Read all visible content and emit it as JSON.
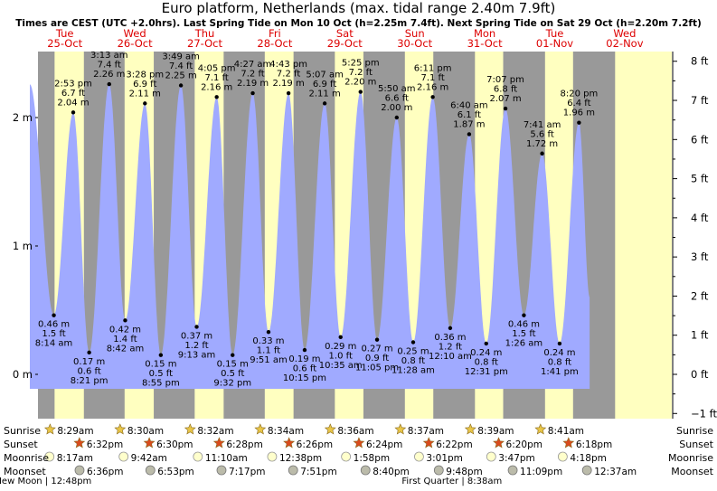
{
  "title": "Euro platform, Netherlands (max. tidal range 2.40m 7.9ft)",
  "subtitle": "Times are CEST (UTC +2.0hrs). Last Spring Tide on Mon 10 Oct (h=2.25m 7.4ft). Next Spring Tide on Sat 29 Oct (h=2.20m 7.2ft)",
  "colors": {
    "night": "#999999",
    "day": "#ffffc0",
    "tide": "#a0aaff",
    "date_text": "#dd0000",
    "sun_star": "#e8c547",
    "sunset_star": "#d94a1e"
  },
  "row_labels": {
    "sunrise": "Sunrise",
    "sunset": "Sunset",
    "moonrise": "Moonrise",
    "moonset": "Moonset"
  },
  "days": [
    {
      "dow": "Tue",
      "date": "25-Oct"
    },
    {
      "dow": "Wed",
      "date": "26-Oct"
    },
    {
      "dow": "Thu",
      "date": "27-Oct"
    },
    {
      "dow": "Fri",
      "date": "28-Oct"
    },
    {
      "dow": "Sat",
      "date": "29-Oct"
    },
    {
      "dow": "Sun",
      "date": "30-Oct"
    },
    {
      "dow": "Mon",
      "date": "31-Oct"
    },
    {
      "dow": "Tue",
      "date": "01-Nov"
    },
    {
      "dow": "Wed",
      "date": "02-Nov"
    }
  ],
  "sun": [
    {
      "sunrise": "8:29am",
      "sunset": "6:32pm"
    },
    {
      "sunrise": "8:30am",
      "sunset": "6:30pm"
    },
    {
      "sunrise": "8:32am",
      "sunset": "6:28pm"
    },
    {
      "sunrise": "8:34am",
      "sunset": "6:26pm"
    },
    {
      "sunrise": "8:36am",
      "sunset": "6:24pm"
    },
    {
      "sunrise": "8:37am",
      "sunset": "6:22pm"
    },
    {
      "sunrise": "8:39am",
      "sunset": "6:20pm"
    },
    {
      "sunrise": "8:41am",
      "sunset": "6:18pm"
    }
  ],
  "moon": [
    {
      "moonrise": "8:17am",
      "moonset": "6:36pm"
    },
    {
      "moonrise": "9:42am",
      "moonset": "6:53pm"
    },
    {
      "moonrise": "11:10am",
      "moonset": "7:17pm"
    },
    {
      "moonrise": "12:38pm",
      "moonset": "7:51pm"
    },
    {
      "moonrise": "1:58pm",
      "moonset": "8:40pm"
    },
    {
      "moonrise": "3:01pm",
      "moonset": "9:48pm"
    },
    {
      "moonrise": "3:47pm",
      "moonset": "11:09pm"
    },
    {
      "moonrise": "4:18pm",
      "moonset": "12:37am"
    }
  ],
  "moon_phases": [
    {
      "label": "New Moon",
      "time": "12:48pm"
    },
    {
      "label": "First Quarter",
      "time": "8:38am"
    }
  ],
  "chart_data": {
    "type": "area",
    "title": "Euro platform, Netherlands (max. tidal range 2.40m 7.9ft)",
    "x_start": "2022-10-25 00:00",
    "x_end": "2022-11-02 00:00",
    "y_left_unit": "m",
    "y_left_ticks": [
      "0 m",
      "1 m",
      "2 m"
    ],
    "y_right_unit": "ft",
    "y_right_ticks": [
      "−1 ft",
      "0 ft",
      "1 ft",
      "2 ft",
      "3 ft",
      "4 ft",
      "5 ft",
      "6 ft",
      "7 ft",
      "8 ft"
    ],
    "ylim_m": [
      -0.4,
      2.6
    ],
    "grid": false,
    "tides": [
      {
        "day": 0,
        "time": "0:00",
        "m": 2.26,
        "show": false
      },
      {
        "day": 0,
        "time": "8:14 am",
        "m": 0.46,
        "ft": "1.5 ft",
        "type": "low"
      },
      {
        "day": 0,
        "time": "2:53 pm",
        "m": 2.04,
        "ft": "6.7 ft",
        "type": "high"
      },
      {
        "day": 0,
        "time": "8:21 pm",
        "m": 0.17,
        "ft": "0.6 ft",
        "type": "low"
      },
      {
        "day": 1,
        "time": "3:13 am",
        "m": 2.26,
        "ft": "7.4 ft",
        "type": "high"
      },
      {
        "day": 1,
        "time": "8:42 am",
        "m": 0.42,
        "ft": "1.4 ft",
        "type": "low"
      },
      {
        "day": 1,
        "time": "3:28 pm",
        "m": 2.11,
        "ft": "6.9 ft",
        "type": "high"
      },
      {
        "day": 1,
        "time": "8:55 pm",
        "m": 0.15,
        "ft": "0.5 ft",
        "type": "low"
      },
      {
        "day": 2,
        "time": "3:49 am",
        "m": 2.25,
        "ft": "7.4 ft",
        "type": "high"
      },
      {
        "day": 2,
        "time": "9:13 am",
        "m": 0.37,
        "ft": "1.2 ft",
        "type": "low"
      },
      {
        "day": 2,
        "time": "4:05 pm",
        "m": 2.16,
        "ft": "7.1 ft",
        "type": "high"
      },
      {
        "day": 2,
        "time": "9:32 pm",
        "m": 0.15,
        "ft": "0.5 ft",
        "type": "low"
      },
      {
        "day": 3,
        "time": "4:27 am",
        "m": 2.19,
        "ft": "7.2 ft",
        "type": "high"
      },
      {
        "day": 3,
        "time": "9:51 am",
        "m": 0.33,
        "ft": "1.1 ft",
        "type": "low"
      },
      {
        "day": 3,
        "time": "4:43 pm",
        "m": 2.19,
        "ft": "7.2 ft",
        "type": "high"
      },
      {
        "day": 3,
        "time": "10:15 pm",
        "m": 0.19,
        "ft": "0.6 ft",
        "type": "low"
      },
      {
        "day": 4,
        "time": "5:07 am",
        "m": 2.11,
        "ft": "6.9 ft",
        "type": "high"
      },
      {
        "day": 4,
        "time": "10:35 am",
        "m": 0.29,
        "ft": "1.0 ft",
        "type": "low"
      },
      {
        "day": 4,
        "time": "5:25 pm",
        "m": 2.2,
        "ft": "7.2 ft",
        "type": "high"
      },
      {
        "day": 4,
        "time": "11:05 pm",
        "m": 0.27,
        "ft": "0.9 ft",
        "type": "low"
      },
      {
        "day": 5,
        "time": "5:50 am",
        "m": 2.0,
        "ft": "6.6 ft",
        "type": "high"
      },
      {
        "day": 5,
        "time": "11:28 am",
        "m": 0.25,
        "ft": "0.8 ft",
        "type": "low"
      },
      {
        "day": 5,
        "time": "6:11 pm",
        "m": 2.16,
        "ft": "7.1 ft",
        "type": "high"
      },
      {
        "day": 6,
        "time": "12:10 am",
        "m": 0.36,
        "ft": "1.2 ft",
        "type": "low"
      },
      {
        "day": 6,
        "time": "6:40 am",
        "m": 1.87,
        "ft": "6.1 ft",
        "type": "high"
      },
      {
        "day": 6,
        "time": "12:31 pm",
        "m": 0.24,
        "ft": "0.8 ft",
        "type": "low"
      },
      {
        "day": 6,
        "time": "7:07 pm",
        "m": 2.07,
        "ft": "6.8 ft",
        "type": "high"
      },
      {
        "day": 7,
        "time": "1:26 am",
        "m": 0.46,
        "ft": "1.5 ft",
        "type": "low"
      },
      {
        "day": 7,
        "time": "7:41 am",
        "m": 1.72,
        "ft": "5.6 ft",
        "type": "high"
      },
      {
        "day": 7,
        "time": "1:41 pm",
        "m": 0.24,
        "ft": "0.8 ft",
        "type": "low"
      },
      {
        "day": 7,
        "time": "8:20 pm",
        "m": 1.96,
        "ft": "6.4 ft",
        "type": "high"
      },
      {
        "day": 7,
        "time": "23:59",
        "m": 0.6,
        "show": false
      }
    ]
  }
}
